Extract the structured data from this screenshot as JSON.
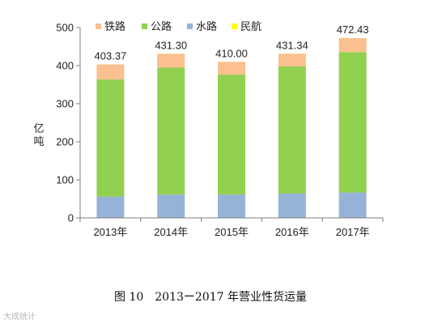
{
  "chart_data": {
    "type": "bar",
    "stacked": true,
    "categories": [
      "2013年",
      "2014年",
      "2015年",
      "2016年",
      "2017年"
    ],
    "series": [
      {
        "name": "水路",
        "color": "#95b3d7",
        "values": [
          55.98,
          61.36,
          61.36,
          63.82,
          66.78
        ]
      },
      {
        "name": "公路",
        "color": "#92d050",
        "values": [
          307.66,
          333.28,
          315.0,
          334.13,
          368.69
        ]
      },
      {
        "name": "铁路",
        "color": "#fac090",
        "values": [
          39.67,
          36.6,
          33.58,
          33.32,
          36.89
        ]
      },
      {
        "name": "民航",
        "color": "#ffff00",
        "values": [
          0.06,
          0.06,
          0.06,
          0.07,
          0.07
        ]
      }
    ],
    "legend_order": [
      "铁路",
      "公路",
      "水路",
      "民航"
    ],
    "totals": [
      "403.37",
      "431.30",
      "410.00",
      "431.34",
      "472.43"
    ],
    "ylabel": "亿吨",
    "ylim": [
      0,
      500
    ],
    "yticks": [
      0,
      100,
      200,
      300,
      400,
      500
    ],
    "grid": false,
    "legend_position": "top-left"
  },
  "caption": "图 10　2013ー2017 年营业性货运量",
  "watermark": "大成统计"
}
